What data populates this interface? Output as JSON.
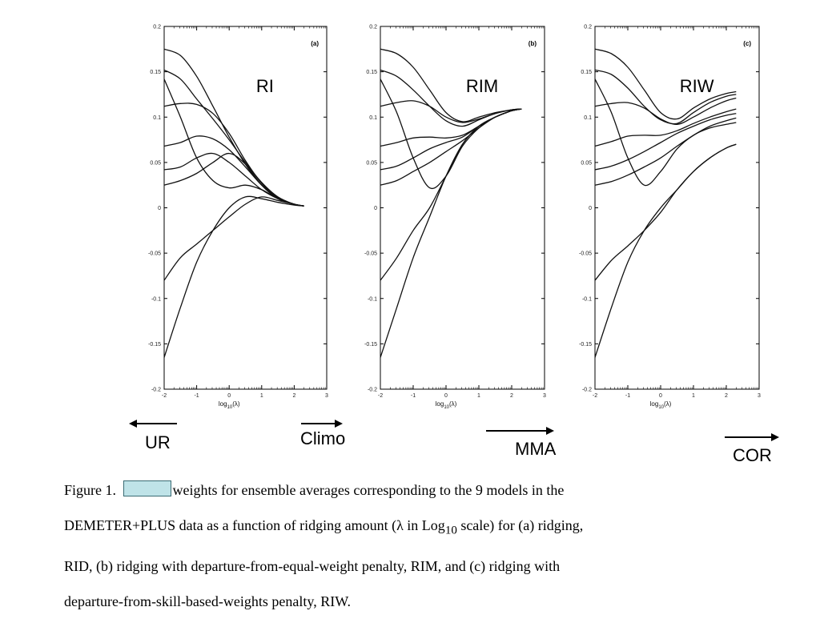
{
  "chart_data": [
    {
      "type": "line",
      "panel_tag": "(a)",
      "method_label": "RI",
      "xlabel_base": "log",
      "xlabel_sub": "10",
      "xlabel_tail": "(λ)",
      "xlim": [
        -2,
        3
      ],
      "ylim": [
        -0.2,
        0.2
      ],
      "xticks": [
        "-2",
        "-1",
        "0",
        "1",
        "2",
        "3"
      ],
      "yticks": [
        "-0.2",
        "-0.15",
        "-0.1",
        "-0.05",
        "0",
        "0.05",
        "0.1",
        "0.15",
        "0.2"
      ],
      "x": [
        -2,
        -1.5,
        -1,
        -0.5,
        0,
        0.5,
        1,
        1.5,
        2,
        2.3
      ],
      "series": [
        {
          "values": [
            0.175,
            0.168,
            0.145,
            0.112,
            0.078,
            0.048,
            0.025,
            0.01,
            0.004,
            0.002
          ]
        },
        {
          "values": [
            0.152,
            0.142,
            0.12,
            0.098,
            0.075,
            0.05,
            0.028,
            0.012,
            0.004,
            0.002
          ]
        },
        {
          "values": [
            0.112,
            0.115,
            0.114,
            0.104,
            0.082,
            0.052,
            0.027,
            0.011,
            0.004,
            0.002
          ]
        },
        {
          "values": [
            0.068,
            0.072,
            0.079,
            0.076,
            0.064,
            0.045,
            0.025,
            0.01,
            0.004,
            0.002
          ]
        },
        {
          "values": [
            0.042,
            0.045,
            0.055,
            0.06,
            0.05,
            0.035,
            0.02,
            0.01,
            0.004,
            0.002
          ]
        },
        {
          "values": [
            0.025,
            0.03,
            0.038,
            0.05,
            0.06,
            0.048,
            0.025,
            0.01,
            0.004,
            0.002
          ]
        },
        {
          "values": [
            0.142,
            0.1,
            0.055,
            0.03,
            0.022,
            0.025,
            0.02,
            0.01,
            0.004,
            0.002
          ]
        },
        {
          "values": [
            -0.08,
            -0.055,
            -0.04,
            -0.025,
            -0.01,
            0.004,
            0.012,
            0.008,
            0.004,
            0.002
          ]
        },
        {
          "values": [
            -0.165,
            -0.11,
            -0.06,
            -0.025,
            0.0,
            0.012,
            0.01,
            0.006,
            0.003,
            0.002
          ]
        }
      ]
    },
    {
      "type": "line",
      "panel_tag": "(b)",
      "method_label": "RIM",
      "xlabel_base": "log",
      "xlabel_sub": "10",
      "xlabel_tail": "(λ)",
      "xlim": [
        -2,
        3
      ],
      "ylim": [
        -0.2,
        0.2
      ],
      "xticks": [
        "-2",
        "-1",
        "0",
        "1",
        "2",
        "3"
      ],
      "yticks": [
        "-0.2",
        "-0.15",
        "-0.1",
        "-0.05",
        "0",
        "0.05",
        "0.1",
        "0.15",
        "0.2"
      ],
      "x": [
        -2,
        -1.5,
        -1,
        -0.5,
        0,
        0.5,
        1,
        1.5,
        2,
        2.3
      ],
      "series": [
        {
          "values": [
            0.175,
            0.17,
            0.155,
            0.13,
            0.105,
            0.095,
            0.1,
            0.105,
            0.108,
            0.109
          ]
        },
        {
          "values": [
            0.152,
            0.145,
            0.13,
            0.112,
            0.096,
            0.09,
            0.097,
            0.104,
            0.108,
            0.109
          ]
        },
        {
          "values": [
            0.112,
            0.116,
            0.118,
            0.112,
            0.1,
            0.094,
            0.098,
            0.104,
            0.108,
            0.109
          ]
        },
        {
          "values": [
            0.068,
            0.072,
            0.077,
            0.078,
            0.077,
            0.08,
            0.09,
            0.1,
            0.107,
            0.109
          ]
        },
        {
          "values": [
            0.042,
            0.046,
            0.055,
            0.065,
            0.072,
            0.078,
            0.09,
            0.1,
            0.107,
            0.109
          ]
        },
        {
          "values": [
            0.025,
            0.03,
            0.04,
            0.05,
            0.062,
            0.074,
            0.088,
            0.1,
            0.107,
            0.109
          ]
        },
        {
          "values": [
            0.142,
            0.105,
            0.055,
            0.022,
            0.035,
            0.068,
            0.088,
            0.1,
            0.107,
            0.109
          ]
        },
        {
          "values": [
            -0.08,
            -0.055,
            -0.025,
            0.0,
            0.035,
            0.07,
            0.09,
            0.1,
            0.107,
            0.109
          ]
        },
        {
          "values": [
            -0.165,
            -0.11,
            -0.055,
            -0.01,
            0.035,
            0.07,
            0.09,
            0.1,
            0.107,
            0.109
          ]
        }
      ]
    },
    {
      "type": "line",
      "panel_tag": "(c)",
      "method_label": "RIW",
      "xlabel_base": "log",
      "xlabel_sub": "10",
      "xlabel_tail": "(λ)",
      "xlim": [
        -2,
        3
      ],
      "ylim": [
        -0.2,
        0.2
      ],
      "xticks": [
        "-2",
        "-1",
        "0",
        "1",
        "2",
        "3"
      ],
      "yticks": [
        "-0.2",
        "-0.15",
        "-0.1",
        "-0.05",
        "0",
        "0.05",
        "0.1",
        "0.15",
        "0.2"
      ],
      "x": [
        -2,
        -1.5,
        -1,
        -0.5,
        0,
        0.5,
        1,
        1.5,
        2,
        2.3
      ],
      "series": [
        {
          "values": [
            0.175,
            0.17,
            0.155,
            0.13,
            0.105,
            0.098,
            0.11,
            0.12,
            0.126,
            0.128
          ]
        },
        {
          "values": [
            0.152,
            0.147,
            0.132,
            0.112,
            0.097,
            0.093,
            0.105,
            0.116,
            0.123,
            0.125
          ]
        },
        {
          "values": [
            0.112,
            0.115,
            0.116,
            0.11,
            0.098,
            0.092,
            0.1,
            0.11,
            0.118,
            0.121
          ]
        },
        {
          "values": [
            0.068,
            0.073,
            0.079,
            0.08,
            0.08,
            0.085,
            0.093,
            0.1,
            0.106,
            0.109
          ]
        },
        {
          "values": [
            0.042,
            0.046,
            0.053,
            0.062,
            0.072,
            0.082,
            0.09,
            0.097,
            0.102,
            0.104
          ]
        },
        {
          "values": [
            0.025,
            0.029,
            0.036,
            0.045,
            0.055,
            0.068,
            0.08,
            0.09,
            0.096,
            0.099
          ]
        },
        {
          "values": [
            0.142,
            0.105,
            0.055,
            0.025,
            0.04,
            0.065,
            0.08,
            0.088,
            0.092,
            0.094
          ]
        },
        {
          "values": [
            -0.08,
            -0.058,
            -0.042,
            -0.025,
            -0.005,
            0.02,
            0.04,
            0.055,
            0.066,
            0.07
          ]
        },
        {
          "values": [
            -0.165,
            -0.11,
            -0.06,
            -0.025,
            0.0,
            0.02,
            0.04,
            0.055,
            0.066,
            0.07
          ]
        }
      ]
    }
  ],
  "annotations": {
    "ur": "UR",
    "climo": "Climo",
    "mma": "MMA",
    "cor": "COR"
  },
  "caption": {
    "prefix": "Figure 1.",
    "line1_rest": "weights for ensemble averages corresponding to the 9 models in the",
    "line2_a": "DEMETER+PLUS data as a function of ridging amount (λ in Log",
    "line2_sub": "10",
    "line2_b": " scale) for (a) ridging,",
    "line3": "RID, (b) ridging with departure-from-equal-weight penalty, RIM, and (c) ridging with",
    "line4": "departure-from-skill-based-weights penalty, RIW."
  }
}
